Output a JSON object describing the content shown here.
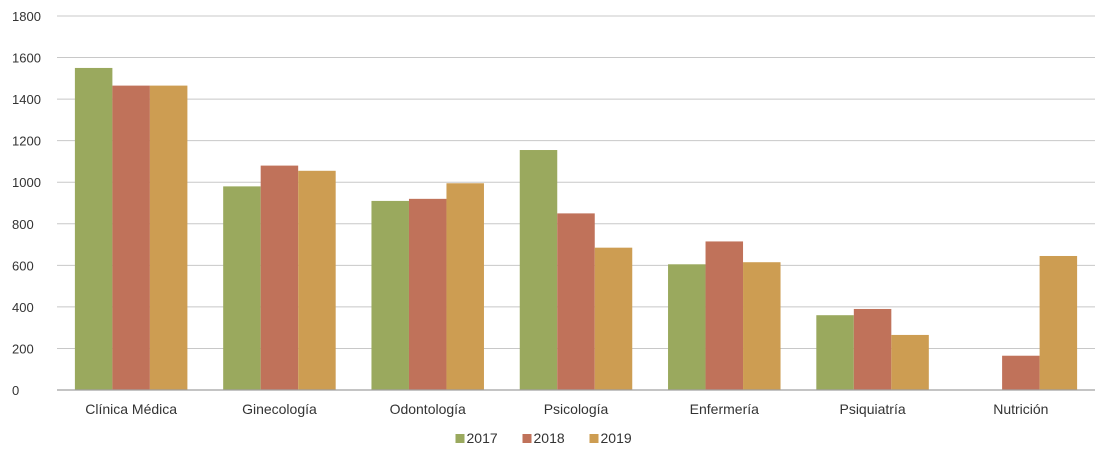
{
  "chart_data": {
    "type": "bar",
    "title": "",
    "xlabel": "",
    "ylabel": "",
    "ylim": [
      0,
      1800
    ],
    "y_ticks": [
      "0",
      "200",
      "400",
      "600",
      "800",
      "1000",
      "1200",
      "1400",
      "1600",
      "1800"
    ],
    "grid": true,
    "legend_position": "bottom-center",
    "categories": [
      "Clínica Médica",
      "Ginecología",
      "Odontología",
      "Psicología",
      "Enfermería",
      "Psiquiatría",
      "Nutrición"
    ],
    "series": [
      {
        "name": "2017",
        "color": "#9aa95e",
        "values": [
          1550,
          980,
          910,
          1155,
          605,
          360,
          0
        ]
      },
      {
        "name": "2018",
        "color": "#c0725a",
        "values": [
          1465,
          1080,
          920,
          850,
          715,
          390,
          165
        ]
      },
      {
        "name": "2019",
        "color": "#cd9d52",
        "values": [
          1465,
          1055,
          995,
          685,
          615,
          265,
          645
        ]
      }
    ]
  }
}
